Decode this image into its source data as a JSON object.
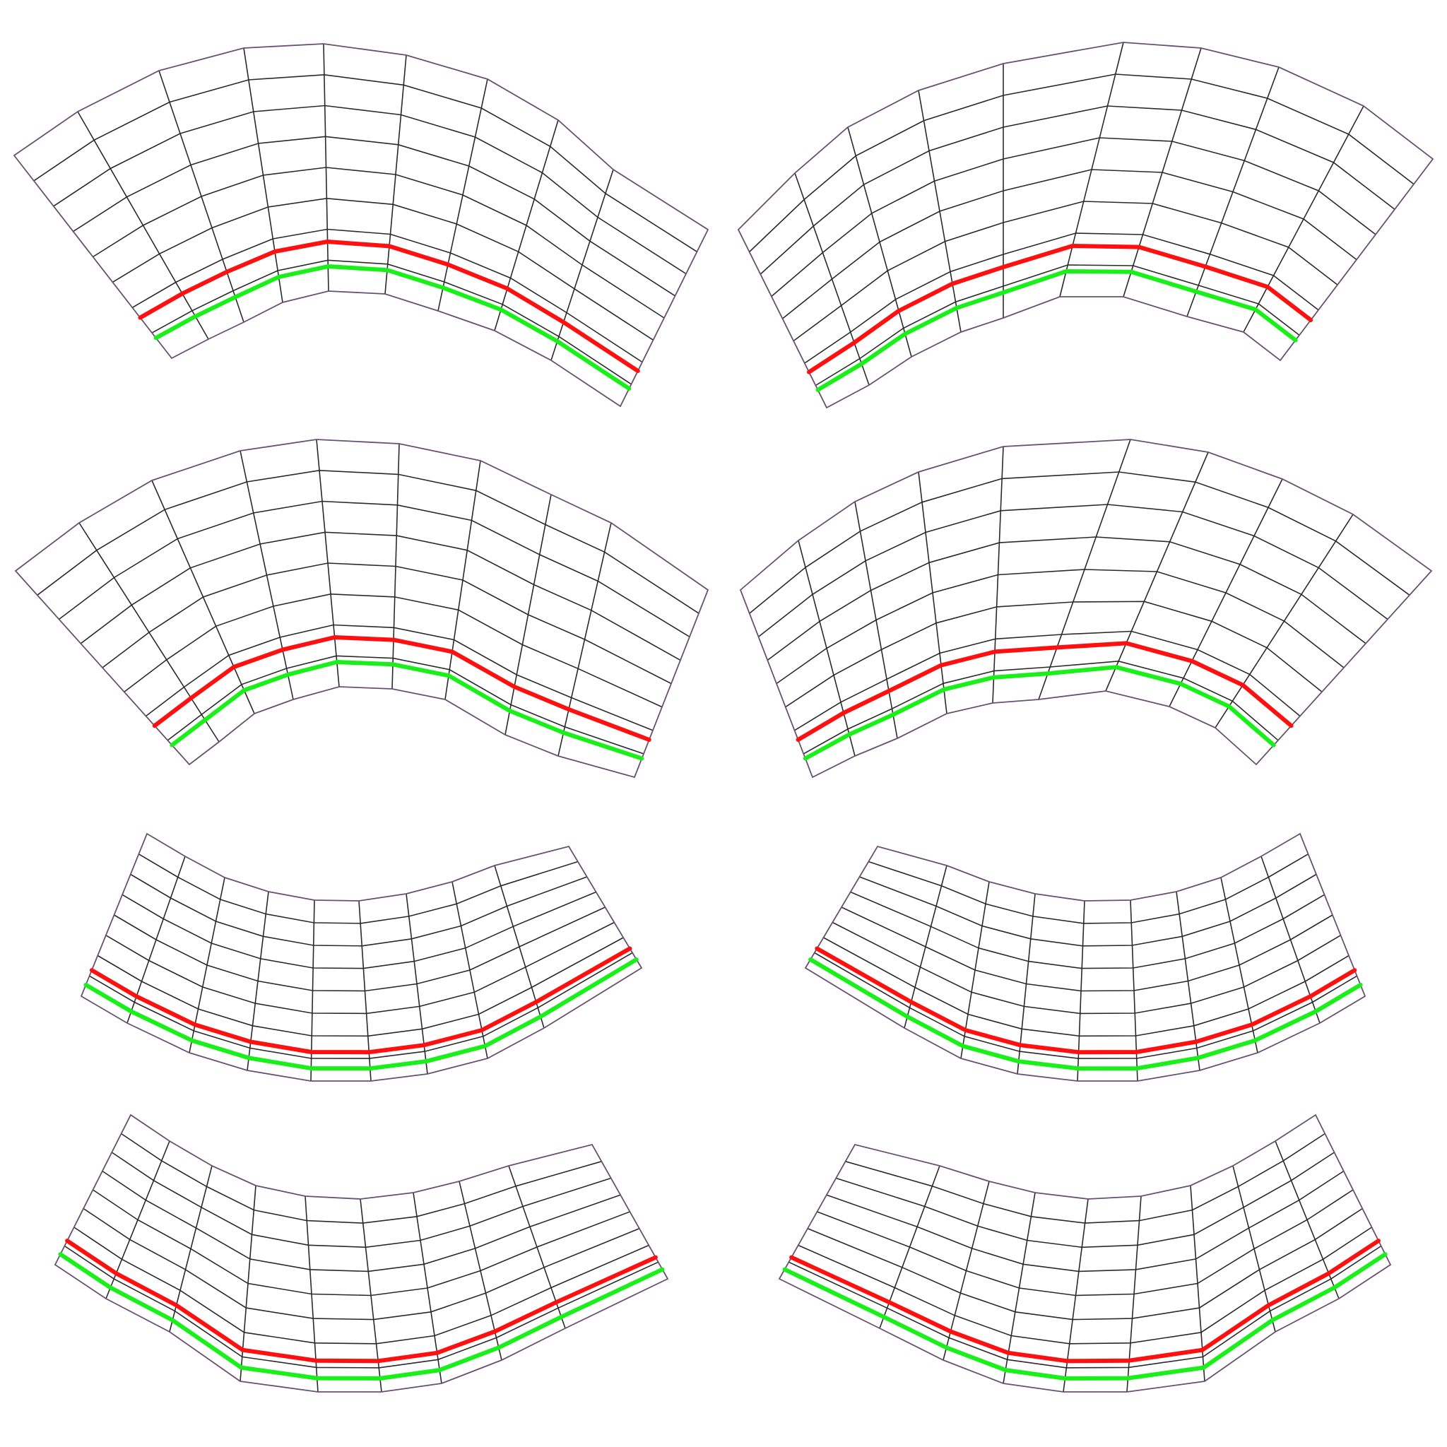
{
  "figure": {
    "description_free": true,
    "panel_count": 8,
    "grid": {
      "radial_divisions": 9,
      "arc_divisions": 8
    },
    "colors": {
      "background": "#ffffff",
      "mesh_outline": "#6a5070",
      "mesh_lines": "#2a2a2a",
      "red_curve": "#ff1010",
      "green_curve": "#19f019"
    },
    "panels": [
      {
        "id": "top-left",
        "orientation": "arch-up",
        "mirrored": false
      },
      {
        "id": "top-right",
        "orientation": "arch-up",
        "mirrored": true
      },
      {
        "id": "second-left",
        "orientation": "arch-up",
        "mirrored": false
      },
      {
        "id": "second-right",
        "orientation": "arch-up",
        "mirrored": true
      },
      {
        "id": "third-left",
        "orientation": "smile",
        "mirrored": false
      },
      {
        "id": "third-right",
        "orientation": "smile",
        "mirrored": true
      },
      {
        "id": "bottom-left",
        "orientation": "smile",
        "mirrored": false
      },
      {
        "id": "bottom-right",
        "orientation": "smile",
        "mirrored": true
      }
    ]
  }
}
